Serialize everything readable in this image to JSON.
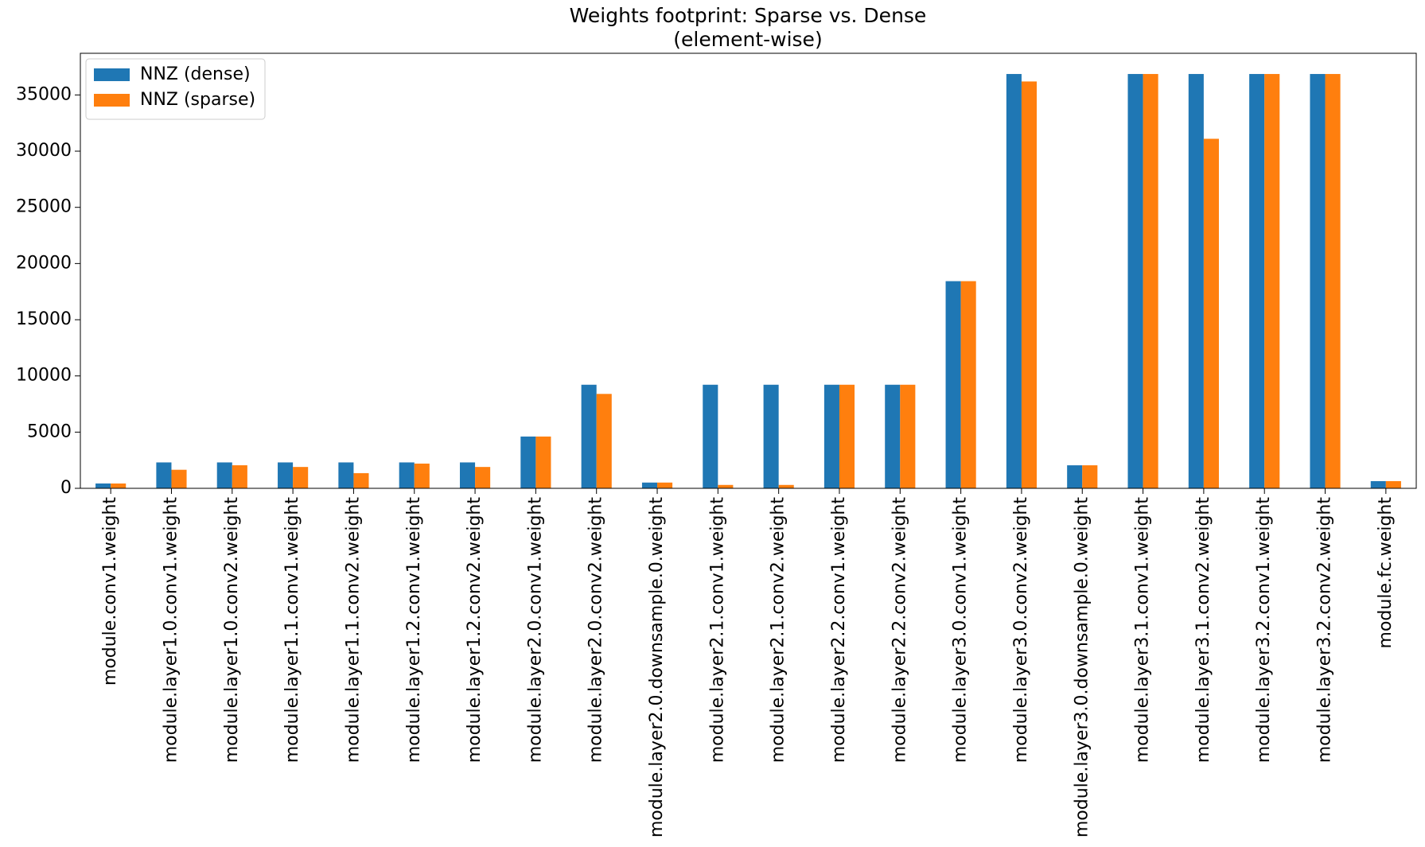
{
  "chart_data": {
    "type": "bar",
    "title": "Weights footprint: Sparse vs. Dense",
    "subtitle": "(element-wise)",
    "categories": [
      "module.conv1.weight",
      "module.layer1.0.conv1.weight",
      "module.layer1.0.conv2.weight",
      "module.layer1.1.conv1.weight",
      "module.layer1.1.conv2.weight",
      "module.layer1.2.conv1.weight",
      "module.layer1.2.conv2.weight",
      "module.layer2.0.conv1.weight",
      "module.layer2.0.conv2.weight",
      "module.layer2.0.downsample.0.weight",
      "module.layer2.1.conv1.weight",
      "module.layer2.1.conv2.weight",
      "module.layer2.2.conv1.weight",
      "module.layer2.2.conv2.weight",
      "module.layer3.0.conv1.weight",
      "module.layer3.0.conv2.weight",
      "module.layer3.0.downsample.0.weight",
      "module.layer3.1.conv1.weight",
      "module.layer3.1.conv2.weight",
      "module.layer3.2.conv1.weight",
      "module.layer3.2.conv2.weight",
      "module.fc.weight"
    ],
    "series": [
      {
        "name": "NNZ (dense)",
        "color": "#1f77b4",
        "values": [
          432,
          2304,
          2304,
          2304,
          2304,
          2304,
          2304,
          4608,
          9216,
          512,
          9216,
          9216,
          9216,
          9216,
          18432,
          36864,
          2048,
          36864,
          36864,
          36864,
          36864,
          640
        ]
      },
      {
        "name": "NNZ (sparse)",
        "color": "#ff7f0e",
        "values": [
          430,
          1650,
          2050,
          1900,
          1350,
          2200,
          1900,
          4608,
          8400,
          512,
          300,
          300,
          9216,
          9216,
          18432,
          36200,
          2048,
          36864,
          31100,
          36864,
          36864,
          640
        ]
      }
    ],
    "ylim": [
      0,
      38707
    ],
    "yticks": [
      0,
      5000,
      10000,
      15000,
      20000,
      25000,
      30000,
      35000
    ],
    "legend": "upper left"
  }
}
